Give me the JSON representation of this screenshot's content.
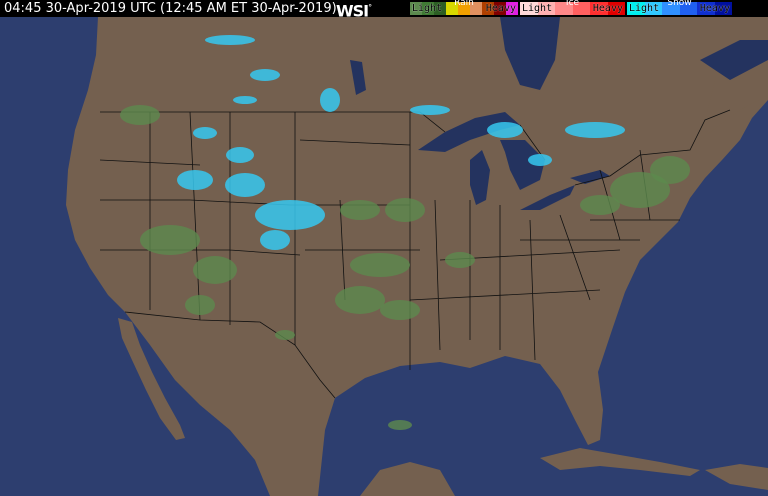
{
  "header": {
    "timestamp": "04:45 30-Apr-2019 UTC  (12:45 AM ET 30-Apr-2019)",
    "logo": "WSI",
    "logo_mark": "°"
  },
  "legend": [
    {
      "title": "Rain",
      "low": "Light",
      "high": "Heavy",
      "colors": [
        "#5c8a4e",
        "#3f7a33",
        "#2c5e24",
        "#d8d800",
        "#f0a000",
        "#e09060",
        "#b04000",
        "#800000",
        "#e020e0"
      ]
    },
    {
      "title": "Ice",
      "low": "Light",
      "high": "Heavy",
      "colors": [
        "#ffd8d8",
        "#ffb0b0",
        "#ff8888",
        "#ff6060",
        "#ff3030",
        "#e00000"
      ]
    },
    {
      "title": "Snow",
      "low": "Light",
      "high": "Heavy",
      "colors": [
        "#00f0f0",
        "#30c8ff",
        "#3090ff",
        "#2060f0",
        "#1030d0",
        "#0010a0"
      ]
    }
  ],
  "colors": {
    "land": "#74604f",
    "ocean": "#2d3e6f",
    "lake": "#24335f",
    "rain": "#5c8a4e",
    "snow": "#36c8f0",
    "border": "#111111"
  }
}
